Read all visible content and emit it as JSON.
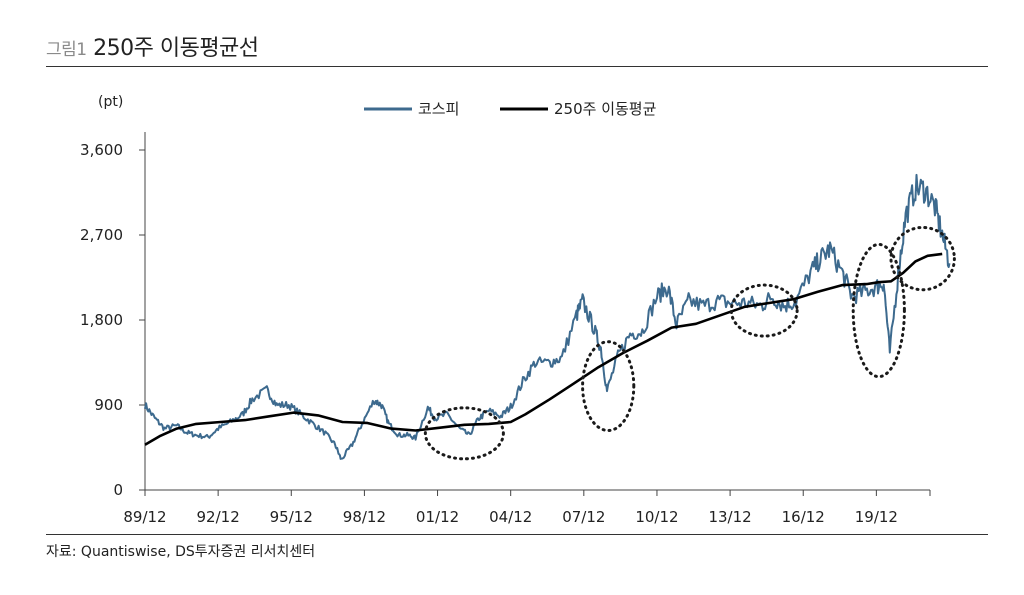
{
  "figure": {
    "number": "그림1",
    "title": "250주 이동평균선"
  },
  "source": "자료: Quantiswise, DS투자증권 리서치센터",
  "colors": {
    "kospi": "#3d6a8e",
    "ma": "#000000",
    "axis": "#444444",
    "circle": "#1a1a1a"
  },
  "chart_data": {
    "type": "line",
    "title": "250주 이동평균선",
    "yunit": "(pt)",
    "xlabel": "",
    "ylabel": "(pt)",
    "xlim": [
      1989.9,
      2022.1
    ],
    "ylim": [
      0,
      3600
    ],
    "yticks": [
      0,
      900,
      1800,
      2700,
      3600
    ],
    "ytick_labels": [
      "0",
      "900",
      "1,800",
      "2,700",
      "3,600"
    ],
    "xtick_positions": [
      1989.9,
      1992.9,
      1995.9,
      1998.9,
      2001.9,
      2004.9,
      2007.9,
      2010.9,
      2013.9,
      2016.9,
      2019.9
    ],
    "xtick_labels": [
      "89/12",
      "92/12",
      "95/12",
      "98/12",
      "01/12",
      "04/12",
      "07/12",
      "10/12",
      "13/12",
      "16/12",
      "19/12"
    ],
    "legend": {
      "position": "top-center",
      "entries": [
        "코스피",
        "250주 이동평균"
      ]
    },
    "annotations": [
      {
        "type": "dotted-ellipse",
        "x": 2003.0,
        "y": 600,
        "xr": 1.6,
        "yr": 270,
        "label": ""
      },
      {
        "type": "dotted-ellipse",
        "x": 2008.9,
        "y": 1100,
        "xr": 1.05,
        "yr": 470,
        "label": ""
      },
      {
        "type": "dotted-ellipse",
        "x": 2015.3,
        "y": 1900,
        "xr": 1.35,
        "yr": 270,
        "label": ""
      },
      {
        "type": "dotted-ellipse",
        "x": 2020.0,
        "y": 1900,
        "xr": 1.05,
        "yr": 700,
        "label": ""
      },
      {
        "type": "dotted-ellipse",
        "x": 2021.8,
        "y": 2450,
        "xr": 1.3,
        "yr": 330,
        "label": ""
      }
    ],
    "series": [
      {
        "name": "코스피",
        "color": "#3d6a8e",
        "x": [
          1989.9,
          1990.3,
          1990.7,
          1991.2,
          1991.6,
          1992.0,
          1992.5,
          1992.9,
          1993.4,
          1993.9,
          1994.3,
          1994.9,
          1995.3,
          1995.8,
          1996.3,
          1996.8,
          1997.3,
          1997.7,
          1997.95,
          1998.4,
          1998.8,
          1999.3,
          1999.6,
          1999.9,
          2000.3,
          2000.7,
          2001.0,
          2001.5,
          2001.8,
          2002.3,
          2002.8,
          2003.2,
          2003.6,
          2004.0,
          2004.5,
          2004.9,
          2005.4,
          2005.9,
          2006.5,
          2007.0,
          2007.6,
          2007.85,
          2008.3,
          2008.6,
          2008.85,
          2009.3,
          2009.8,
          2010.3,
          2010.9,
          2011.35,
          2011.7,
          2012.2,
          2012.8,
          2013.4,
          2014.0,
          2014.6,
          2015.2,
          2015.6,
          2016.1,
          2016.6,
          2017.2,
          2017.6,
          2018.0,
          2018.5,
          2018.9,
          2019.4,
          2019.9,
          2020.2,
          2020.45,
          2020.8,
          2021.1,
          2021.5,
          2021.9,
          2022.3,
          2022.6,
          2022.9
        ],
        "y": [
          900,
          760,
          650,
          680,
          610,
          580,
          560,
          650,
          720,
          800,
          960,
          1060,
          900,
          900,
          800,
          700,
          600,
          480,
          320,
          480,
          700,
          950,
          900,
          700,
          580,
          580,
          550,
          870,
          760,
          800,
          650,
          580,
          760,
          840,
          780,
          880,
          1150,
          1350,
          1350,
          1400,
          1850,
          2000,
          1720,
          1500,
          1050,
          1420,
          1650,
          1680,
          2050,
          2150,
          1750,
          2000,
          1950,
          2000,
          1980,
          1980,
          1950,
          2050,
          1950,
          2000,
          2300,
          2450,
          2550,
          2300,
          2050,
          2100,
          2150,
          2200,
          1460,
          2300,
          2900,
          3200,
          3180,
          3000,
          2700,
          2400
        ]
      },
      {
        "name": "250주 이동평균",
        "color": "#000000",
        "x": [
          1989.9,
          1990.5,
          1991.2,
          1992.0,
          1993.0,
          1994.0,
          1995.0,
          1996.0,
          1997.0,
          1998.0,
          1999.0,
          2000.0,
          2001.0,
          2002.0,
          2003.0,
          2004.0,
          2004.9,
          2005.5,
          2006.5,
          2007.5,
          2008.5,
          2009.5,
          2010.5,
          2011.5,
          2012.5,
          2013.5,
          2014.5,
          2015.5,
          2016.5,
          2017.5,
          2018.5,
          2019.5,
          2020.0,
          2020.5,
          2021.0,
          2021.5,
          2022.0,
          2022.6
        ],
        "y": [
          480,
          570,
          650,
          700,
          720,
          740,
          780,
          820,
          790,
          720,
          710,
          650,
          630,
          660,
          690,
          700,
          720,
          800,
          960,
          1130,
          1300,
          1450,
          1580,
          1720,
          1760,
          1850,
          1940,
          1980,
          2020,
          2100,
          2170,
          2180,
          2200,
          2210,
          2300,
          2420,
          2480,
          2500
        ]
      }
    ]
  }
}
